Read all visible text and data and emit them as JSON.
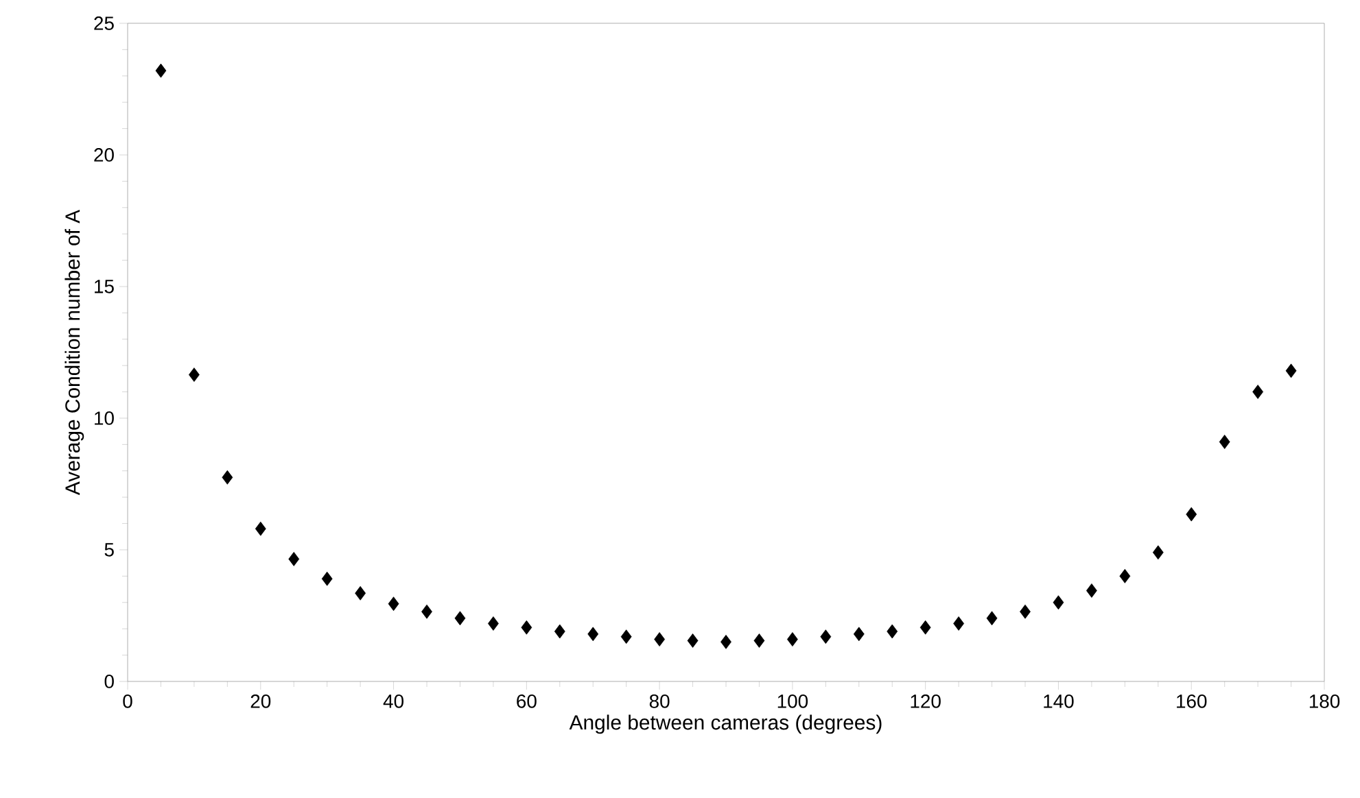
{
  "chart_data": {
    "type": "scatter",
    "xlabel": "Angle between cameras (degrees)",
    "ylabel": "Average Condition number of A",
    "x": [
      5,
      10,
      15,
      20,
      25,
      30,
      35,
      40,
      45,
      50,
      55,
      60,
      65,
      70,
      75,
      80,
      85,
      90,
      95,
      100,
      105,
      110,
      115,
      120,
      125,
      130,
      135,
      140,
      145,
      150,
      155,
      160,
      165,
      170,
      175
    ],
    "values": [
      23.2,
      11.65,
      7.75,
      5.8,
      4.65,
      3.9,
      3.35,
      2.95,
      2.65,
      2.4,
      2.2,
      2.05,
      1.9,
      1.8,
      1.7,
      1.6,
      1.55,
      1.5,
      1.55,
      1.6,
      1.7,
      1.8,
      1.9,
      2.05,
      2.2,
      2.4,
      2.65,
      3.0,
      3.45,
      4.0,
      4.9,
      6.35,
      9.1,
      11.0,
      11.8
    ],
    "color": "#000000",
    "marker": "diamond",
    "xlim": [
      0,
      180
    ],
    "xticks": [
      0,
      20,
      40,
      60,
      80,
      100,
      120,
      140,
      160,
      180
    ],
    "ylim": [
      0,
      25
    ],
    "yticks": [
      0,
      5,
      10,
      15,
      20,
      25
    ]
  }
}
